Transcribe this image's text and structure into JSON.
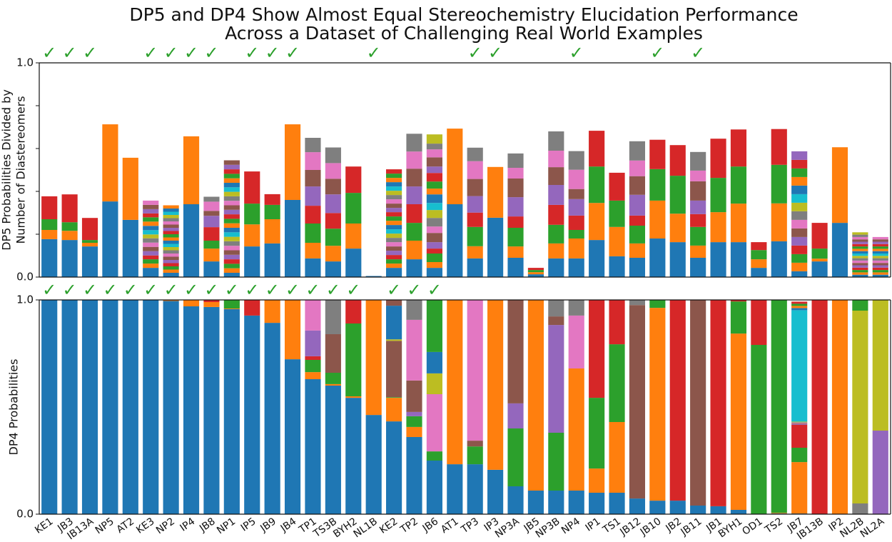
{
  "chart_data": [
    {
      "type": "bar",
      "stacked": true,
      "title": "DP5 and DP4 Show Almost Equal Stereochemistry Elucidation Performance",
      "subtitle": "Across a Dataset of Challenging Real World Examples",
      "ylabel": [
        "DP5 Probabilities Divided by",
        "Number of Diastereomers"
      ],
      "colors": [
        "#1f77b4",
        "#ff7f0e",
        "#2ca02c",
        "#d62728",
        "#9467bd",
        "#8c564b",
        "#e377c2",
        "#7f7f7f",
        "#bcbd22",
        "#17becf"
      ],
      "ylim": [
        0,
        1
      ],
      "yticks": [
        {
          "value": 0,
          "label": "0.0"
        },
        {
          "value": 1,
          "label": "1.0"
        }
      ],
      "minor_yticks": [
        0.2,
        0.4,
        0.6,
        0.8
      ],
      "check_mark": "✓",
      "check_color": "#2ca02c",
      "checked": [
        true,
        true,
        true,
        false,
        false,
        true,
        true,
        true,
        true,
        false,
        true,
        true,
        true,
        false,
        false,
        false,
        true,
        false,
        false,
        false,
        false,
        true,
        true,
        false,
        false,
        false,
        true,
        false,
        false,
        false,
        true,
        false,
        true,
        false,
        false,
        false,
        false,
        false,
        false,
        false,
        false,
        false
      ],
      "stacks": [
        [
          0.177,
          0.043,
          0.05,
          0.107
        ],
        [
          0.173,
          0.043,
          0.04,
          0.13
        ],
        [
          0.143,
          0.017,
          0.013,
          0.103
        ],
        [
          0.353,
          0.36
        ],
        [
          0.267,
          0.29
        ],
        [
          0.043,
          0.02,
          0.02,
          0.018,
          0.02,
          0.02,
          0.02,
          0.02,
          0.018,
          0.02,
          0.02,
          0.02,
          0.02,
          0.018,
          0.02,
          0.02,
          0.02
        ],
        [
          0.02,
          0.015,
          0.015,
          0.015,
          0.015,
          0.015,
          0.015,
          0.015,
          0.015,
          0.015,
          0.015,
          0.015,
          0.015,
          0.015,
          0.015,
          0.015,
          0.015,
          0.015,
          0.015,
          0.015,
          0.015,
          0.015
        ],
        [
          0.34,
          0.317
        ],
        [
          0.073,
          0.06,
          0.037,
          0.063,
          0.053,
          0.023,
          0.043,
          0.023
        ],
        [
          0.02,
          0.021,
          0.021,
          0.021,
          0.021,
          0.021,
          0.021,
          0.021,
          0.021,
          0.021,
          0.021,
          0.021,
          0.021,
          0.021,
          0.021,
          0.021,
          0.021,
          0.021,
          0.021,
          0.021,
          0.021,
          0.021,
          0.021,
          0.021,
          0.021,
          0.021
        ],
        [
          0.143,
          0.103,
          0.097,
          0.15
        ],
        [
          0.157,
          0.113,
          0.067,
          0.05
        ],
        [
          0.36,
          0.353
        ],
        [
          0.087,
          0.073,
          0.09,
          0.083,
          0.09,
          0.077,
          0.083,
          0.067
        ],
        [
          0.073,
          0.073,
          0.08,
          0.073,
          0.087,
          0.073,
          0.073,
          0.073
        ],
        [
          0.133,
          0.117,
          0.143,
          0.123
        ],
        [
          0.005
        ],
        [
          0.043,
          0.02,
          0.02,
          0.02,
          0.02,
          0.02,
          0.02,
          0.02,
          0.02,
          0.02,
          0.02,
          0.02,
          0.02,
          0.02,
          0.02,
          0.02,
          0.02,
          0.02,
          0.02,
          0.02,
          0.02,
          0.02,
          0.02,
          0.02
        ],
        [
          0.083,
          0.087,
          0.083,
          0.087,
          0.083,
          0.083,
          0.08,
          0.083
        ],
        [
          0.043,
          0.027,
          0.04,
          0.023,
          0.03,
          0.043,
          0.03,
          0.04,
          0.037,
          0.033,
          0.04,
          0.027,
          0.033,
          0.04,
          0.03,
          0.043,
          0.037,
          0.027,
          0.043
        ],
        [
          0.34,
          0.353
        ],
        [
          0.087,
          0.057,
          0.09,
          0.067,
          0.077,
          0.08,
          0.083,
          0.063
        ],
        [
          0.277,
          0.237
        ],
        [
          0.09,
          0.053,
          0.087,
          0.053,
          0.09,
          0.087,
          0.05,
          0.067
        ],
        [
          0.013,
          0.01,
          0.01,
          0.01
        ],
        [
          0.087,
          0.07,
          0.087,
          0.093,
          0.093,
          0.083,
          0.077,
          0.09
        ],
        [
          0.087,
          0.093,
          0.04,
          0.067,
          0.077,
          0.047,
          0.09,
          0.087
        ],
        [
          0.173,
          0.173,
          0.17,
          0.167
        ],
        [
          0.097,
          0.137,
          0.123,
          0.13
        ],
        [
          0.09,
          0.067,
          0.083,
          0.047,
          0.097,
          0.087,
          0.073,
          0.09
        ],
        [
          0.18,
          0.177,
          0.147,
          0.137
        ],
        [
          0.163,
          0.133,
          0.177,
          0.143
        ],
        [
          0.09,
          0.057,
          0.087,
          0.06,
          0.063,
          0.09,
          0.05,
          0.087
        ],
        [
          0.163,
          0.14,
          0.16,
          0.183
        ],
        [
          0.163,
          0.18,
          0.173,
          0.173
        ],
        [
          0.043,
          0.04,
          0.043,
          0.037
        ],
        [
          0.167,
          0.177,
          0.18,
          0.167
        ],
        [
          0.027,
          0.04,
          0.04,
          0.04,
          0.04,
          0.04,
          0.04,
          0.04,
          0.04,
          0.04,
          0.04,
          0.04,
          0.04,
          0.04,
          0.04
        ],
        [
          0.073,
          0.013,
          0.047,
          0.12
        ],
        [
          0.253,
          0.353
        ],
        [
          0.011,
          0.011,
          0.011,
          0.011,
          0.011,
          0.011,
          0.011,
          0.011,
          0.011,
          0.011,
          0.011,
          0.011,
          0.011,
          0.011,
          0.011,
          0.011,
          0.011,
          0.011,
          0.011
        ],
        [
          0.011,
          0.011,
          0.011,
          0.011,
          0.011,
          0.011,
          0.011,
          0.011,
          0.011,
          0.011,
          0.011,
          0.011,
          0.011,
          0.011,
          0.011,
          0.011,
          0.011
        ]
      ]
    },
    {
      "type": "bar",
      "stacked": true,
      "ylabel": [
        "DP4 Probabilities"
      ],
      "categories": [
        "KE1",
        "JB3",
        "JB13A",
        "NP5",
        "AT2",
        "KE3",
        "NP2",
        "IP4",
        "JB8",
        "NP1",
        "IP5",
        "JB9",
        "JB4",
        "TP1",
        "TS3B",
        "BYH2",
        "NL1B",
        "KE2",
        "TP2",
        "JB6",
        "AT1",
        "TP3",
        "IP3",
        "NP3A",
        "JB5",
        "NP3B",
        "NP4",
        "IP1",
        "TS1",
        "JB12",
        "JB10",
        "JB2",
        "JB11",
        "JB1",
        "BYH1",
        "OD1",
        "TS2",
        "JB7",
        "JB13B",
        "IP2",
        "NL2B",
        "NL2A"
      ],
      "colors": [
        "#1f77b4",
        "#ff7f0e",
        "#2ca02c",
        "#d62728",
        "#9467bd",
        "#8c564b",
        "#e377c2",
        "#7f7f7f",
        "#bcbd22",
        "#17becf"
      ],
      "ylim": [
        0,
        1
      ],
      "yticks": [
        {
          "value": 0,
          "label": "0.0"
        },
        {
          "value": 1,
          "label": "1.0"
        }
      ],
      "check_mark": "✓",
      "check_color": "#2ca02c",
      "checked": [
        true,
        true,
        true,
        true,
        true,
        true,
        true,
        true,
        true,
        true,
        true,
        true,
        true,
        true,
        true,
        true,
        false,
        true,
        true,
        true,
        false,
        false,
        false,
        false,
        false,
        false,
        false,
        false,
        false,
        false,
        false,
        false,
        false,
        false,
        false,
        false,
        false,
        false,
        false,
        false,
        false,
        false
      ],
      "stacks": [
        [
          1
        ],
        [
          1
        ],
        [
          1
        ],
        [
          1
        ],
        [
          1
        ],
        [
          1
        ],
        [
          0.995,
          0.005
        ],
        [
          0.97,
          0.03
        ],
        [
          0.967,
          0.023,
          0,
          0.01
        ],
        [
          0.957,
          0.003,
          0.04
        ],
        [
          0.927,
          0,
          0,
          0.073
        ],
        [
          0.893,
          0.107
        ],
        [
          0.723,
          0.277
        ],
        [
          0.63,
          0.033,
          0.057,
          0.017,
          0.12,
          0,
          0.143
        ],
        [
          0.6,
          0.007,
          0.053,
          0,
          0,
          0.18,
          0,
          0.16
        ],
        [
          0.543,
          0.007,
          0.34,
          0.11
        ],
        [
          0.463,
          0.537
        ],
        [
          0.433,
          0.11,
          0.003,
          0,
          0,
          0.263,
          0,
          0,
          0.007,
          0,
          0.157,
          0,
          0,
          0,
          0,
          0.027
        ],
        [
          0.36,
          0.047,
          0.05,
          0,
          0.02,
          0.147,
          0.283,
          0.093
        ],
        [
          0.25,
          0,
          0.043,
          0,
          0,
          0,
          0.267,
          0,
          0.097,
          0,
          0.1,
          0,
          0.243
        ],
        [
          0.233,
          0.767
        ],
        [
          0.233,
          0,
          0.083,
          0,
          0,
          0.027,
          0.657
        ],
        [
          0.207,
          0.793
        ],
        [
          0.13,
          0,
          0.27,
          0,
          0.117,
          0.483
        ],
        [
          0.11,
          0.89
        ],
        [
          0.11,
          0,
          0.27,
          0,
          0.503,
          0.04,
          0,
          0.077
        ],
        [
          0.11,
          0.57,
          0,
          0,
          0,
          0,
          0.247,
          0.073
        ],
        [
          0.1,
          0.113,
          0.33,
          0.457
        ],
        [
          0.1,
          0.33,
          0.363,
          0.207
        ],
        [
          0.073,
          0,
          0,
          0,
          0,
          0.903,
          0,
          0.023
        ],
        [
          0.063,
          0.9,
          0.037
        ],
        [
          0.063,
          0,
          0,
          0.937
        ],
        [
          0.04,
          0,
          0,
          0,
          0,
          0.96
        ],
        [
          0.037,
          0,
          0,
          0.963
        ],
        [
          0.02,
          0.823,
          0.15,
          0.007
        ],
        [
          0,
          0,
          0.79,
          0.21
        ],
        [
          0.003,
          0.003,
          0.994
        ],
        [
          0.003,
          0.24,
          0.067,
          0.107,
          0.003,
          0.003,
          0.003,
          0.003,
          0.003,
          0.52,
          0.01,
          0.01,
          0.01,
          0.01
        ],
        [
          0,
          0,
          0,
          1
        ],
        [
          0,
          1
        ],
        [
          0,
          0,
          0,
          0,
          0,
          0,
          0,
          0.05,
          0.9,
          0,
          0,
          0,
          0.05
        ],
        [
          0,
          0,
          0,
          0,
          0.39,
          0,
          0,
          0,
          0.61
        ]
      ]
    }
  ]
}
